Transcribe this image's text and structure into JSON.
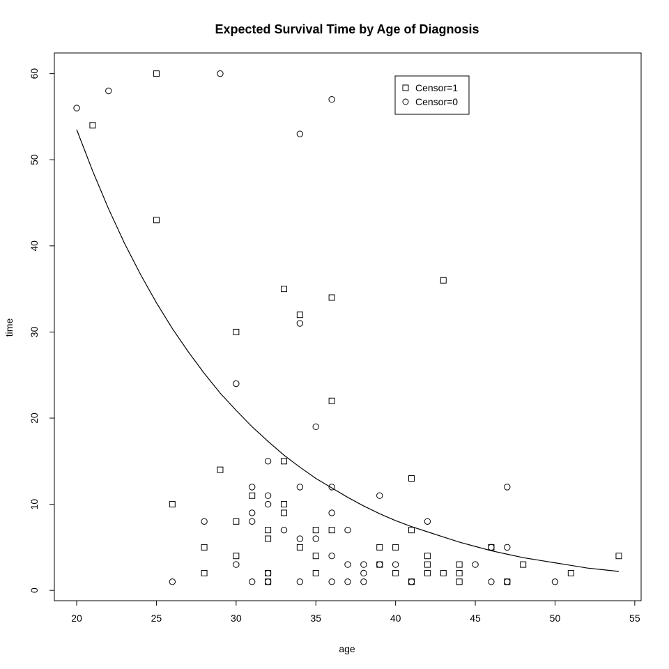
{
  "chart_data": {
    "type": "scatter",
    "title": "Expected Survival Time by Age of Diagnosis",
    "xlabel": "age",
    "ylabel": "time",
    "xlim": [
      18.6,
      55.4
    ],
    "ylim": [
      -1.2,
      62.4
    ],
    "xticks": [
      "20",
      "25",
      "30",
      "35",
      "40",
      "45",
      "50",
      "55"
    ],
    "yticks": [
      "0",
      "10",
      "20",
      "30",
      "40",
      "50",
      "60"
    ],
    "grid": false,
    "legend": {
      "position": "top-right",
      "entries": [
        {
          "label": "Censor=1",
          "marker": "square"
        },
        {
          "label": "Censor=0",
          "marker": "circle"
        }
      ]
    },
    "series": [
      {
        "name": "Censor=1",
        "marker": "square",
        "points": [
          [
            21,
            54
          ],
          [
            25,
            60
          ],
          [
            25,
            43
          ],
          [
            26,
            10
          ],
          [
            28,
            5
          ],
          [
            28,
            2
          ],
          [
            29,
            14
          ],
          [
            30,
            30
          ],
          [
            30,
            8
          ],
          [
            30,
            4
          ],
          [
            31,
            11
          ],
          [
            32,
            7
          ],
          [
            32,
            6
          ],
          [
            32,
            2
          ],
          [
            32,
            1
          ],
          [
            33,
            35
          ],
          [
            33,
            15
          ],
          [
            33,
            10
          ],
          [
            33,
            9
          ],
          [
            34,
            32
          ],
          [
            34,
            5
          ],
          [
            35,
            7
          ],
          [
            35,
            4
          ],
          [
            35,
            2
          ],
          [
            36,
            34
          ],
          [
            36,
            22
          ],
          [
            36,
            7
          ],
          [
            39,
            5
          ],
          [
            39,
            3
          ],
          [
            40,
            5
          ],
          [
            40,
            2
          ],
          [
            41,
            13
          ],
          [
            41,
            7
          ],
          [
            41,
            1
          ],
          [
            42,
            4
          ],
          [
            42,
            3
          ],
          [
            42,
            2
          ],
          [
            43,
            36
          ],
          [
            43,
            2
          ],
          [
            44,
            3
          ],
          [
            44,
            2
          ],
          [
            44,
            1
          ],
          [
            46,
            5
          ],
          [
            47,
            1
          ],
          [
            48,
            3
          ],
          [
            51,
            2
          ],
          [
            54,
            4
          ]
        ]
      },
      {
        "name": "Censor=0",
        "marker": "circle",
        "points": [
          [
            20,
            56
          ],
          [
            22,
            58
          ],
          [
            26,
            1
          ],
          [
            28,
            8
          ],
          [
            29,
            60
          ],
          [
            30,
            24
          ],
          [
            30,
            3
          ],
          [
            31,
            12
          ],
          [
            31,
            9
          ],
          [
            31,
            8
          ],
          [
            31,
            1
          ],
          [
            32,
            15
          ],
          [
            32,
            11
          ],
          [
            32,
            10
          ],
          [
            32,
            2
          ],
          [
            32,
            1
          ],
          [
            33,
            7
          ],
          [
            34,
            53
          ],
          [
            34,
            31
          ],
          [
            34,
            12
          ],
          [
            34,
            6
          ],
          [
            34,
            1
          ],
          [
            35,
            19
          ],
          [
            35,
            6
          ],
          [
            36,
            57
          ],
          [
            36,
            12
          ],
          [
            36,
            9
          ],
          [
            36,
            4
          ],
          [
            36,
            1
          ],
          [
            37,
            7
          ],
          [
            37,
            3
          ],
          [
            37,
            1
          ],
          [
            38,
            3
          ],
          [
            38,
            2
          ],
          [
            38,
            1
          ],
          [
            39,
            11
          ],
          [
            39,
            3
          ],
          [
            40,
            3
          ],
          [
            41,
            1
          ],
          [
            42,
            8
          ],
          [
            45,
            3
          ],
          [
            46,
            5
          ],
          [
            46,
            1
          ],
          [
            47,
            12
          ],
          [
            47,
            5
          ],
          [
            47,
            1
          ],
          [
            50,
            1
          ]
        ]
      },
      {
        "name": "",
        "marker": "line",
        "points": [
          [
            20,
            53.5
          ],
          [
            21,
            48.7
          ],
          [
            22,
            44.3
          ],
          [
            23,
            40.3
          ],
          [
            24,
            36.7
          ],
          [
            25,
            33.4
          ],
          [
            26,
            30.4
          ],
          [
            27,
            27.7
          ],
          [
            28,
            25.2
          ],
          [
            29,
            22.9
          ],
          [
            30,
            20.9
          ],
          [
            31,
            19.0
          ],
          [
            32,
            17.3
          ],
          [
            33,
            15.7
          ],
          [
            34,
            14.3
          ],
          [
            35,
            13.0
          ],
          [
            36,
            11.9
          ],
          [
            37,
            10.8
          ],
          [
            38,
            9.8
          ],
          [
            39,
            8.9
          ],
          [
            40,
            8.1
          ],
          [
            41,
            7.4
          ],
          [
            42,
            6.8
          ],
          [
            43,
            6.2
          ],
          [
            44,
            5.6
          ],
          [
            45,
            5.1
          ],
          [
            46,
            4.6
          ],
          [
            47,
            4.2
          ],
          [
            48,
            3.8
          ],
          [
            49,
            3.5
          ],
          [
            50,
            3.2
          ],
          [
            51,
            2.9
          ],
          [
            52,
            2.6
          ],
          [
            53,
            2.4
          ],
          [
            54,
            2.2
          ]
        ]
      }
    ]
  }
}
